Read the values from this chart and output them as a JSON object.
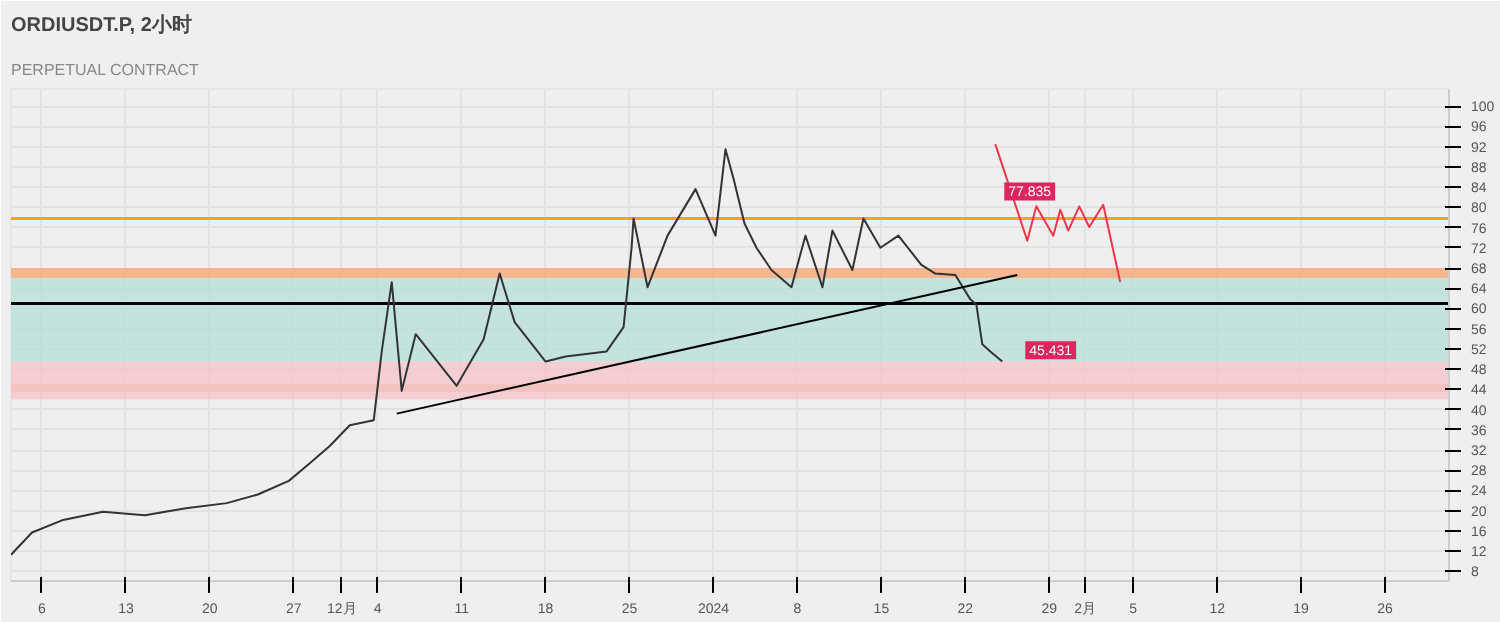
{
  "chart_data": {
    "type": "line",
    "title": "ORDIUSDT.P, 2小时",
    "subtitle": "PERPETUAL CONTRACT",
    "xlim": [
      "2023-11-03T10:00",
      "2024-03-02T08:00"
    ],
    "ylim": [
      6.1,
      103.4
    ],
    "xticks": [
      {
        "value": "2023-11-06",
        "label": "6"
      },
      {
        "value": "2023-11-13",
        "label": "13"
      },
      {
        "value": "2023-11-20",
        "label": "20"
      },
      {
        "value": "2023-11-27",
        "label": "27"
      },
      {
        "value": "2023-12-01",
        "label": "12月"
      },
      {
        "value": "2023-12-04",
        "label": "4"
      },
      {
        "value": "2023-12-11",
        "label": "11"
      },
      {
        "value": "2023-12-18",
        "label": "18"
      },
      {
        "value": "2023-12-25",
        "label": "25"
      },
      {
        "value": "2024-01-01",
        "label": "2024"
      },
      {
        "value": "2024-01-08",
        "label": "8"
      },
      {
        "value": "2024-01-15",
        "label": "15"
      },
      {
        "value": "2024-01-22",
        "label": "22"
      },
      {
        "value": "2024-01-29",
        "label": "29"
      },
      {
        "value": "2024-02-01",
        "label": "2月"
      },
      {
        "value": "2024-02-05",
        "label": "5"
      },
      {
        "value": "2024-02-12",
        "label": "12"
      },
      {
        "value": "2024-02-19",
        "label": "19"
      },
      {
        "value": "2024-02-26",
        "label": "26"
      }
    ],
    "yticks": [
      8,
      12,
      16,
      20,
      24,
      28,
      32,
      36,
      40,
      44,
      48,
      52,
      56,
      60,
      64,
      68,
      72,
      76,
      80,
      84,
      88,
      92,
      96,
      100
    ],
    "grid": true,
    "marker": "none",
    "line_style": "solid",
    "series": [
      {
        "color": "#333333",
        "x": [
          "2023-11-03T10:00",
          "2023-11-05T04:00",
          "2023-11-07T16:00",
          "2023-11-11T02:00",
          "2023-11-14T14:00",
          "2023-11-18T00:00",
          "2023-11-21T10:00",
          "2023-11-24T00:00",
          "2023-11-26T14:00",
          "2023-11-28T08:00",
          "2023-11-30T00:00",
          "2023-12-01T16:00",
          "2023-12-03T16:00",
          "2023-12-04T08:00",
          "2023-12-05T04:00",
          "2023-12-06T00:00",
          "2023-12-07T04:00",
          "2023-12-10T14:00",
          "2023-12-12T20:00",
          "2023-12-14T04:00",
          "2023-12-15T10:00",
          "2023-12-18T00:00",
          "2023-12-19T16:00",
          "2023-12-23T02:00",
          "2023-12-24T12:00",
          "2023-12-25T04:00",
          "2023-12-25T08:00",
          "2023-12-26T12:00",
          "2023-12-28T04:00",
          "2023-12-30T12:00",
          "2024-01-01T04:00",
          "2024-01-02T00:00",
          "2024-01-02T16:00",
          "2024-01-03T14:00",
          "2024-01-04T14:00",
          "2024-01-05T20:00",
          "2024-01-07T12:00",
          "2024-01-08T16:00",
          "2024-01-10T02:00",
          "2024-01-10T22:00",
          "2024-01-12T14:00",
          "2024-01-13T12:00",
          "2024-01-14T22:00",
          "2024-01-16T10:00",
          "2024-01-18T08:00",
          "2024-01-19T12:00",
          "2024-01-21T04:00",
          "2024-01-22T10:00",
          "2024-01-22T22:00",
          "2024-01-23T10:00",
          "2024-01-24T02:00",
          "2024-01-25T02:00"
        ],
        "values": [
          11.3,
          15.7,
          18.1,
          19.8,
          19.1,
          20.5,
          21.5,
          23.2,
          25.9,
          29.4,
          32.8,
          36.9,
          37.9,
          51.5,
          65.2,
          43.7,
          54.9,
          44.7,
          53.9,
          66.9,
          57.3,
          49.5,
          50.5,
          51.5,
          56.3,
          72.0,
          77.8,
          64.2,
          74.4,
          83.6,
          74.4,
          91.5,
          85.7,
          76.8,
          72.0,
          67.6,
          64.2,
          74.4,
          64.2,
          75.4,
          67.6,
          77.8,
          72.0,
          74.4,
          68.6,
          66.9,
          66.6,
          61.8,
          60.8,
          52.9,
          51.5,
          49.5
        ]
      },
      {
        "color": "#000000",
        "x": [
          "2023-12-05T14:00",
          "2024-01-26T08:00"
        ],
        "values": [
          39.2,
          66.6
        ]
      },
      {
        "color": "#f23645",
        "x": [
          "2024-01-24T12:00",
          "2024-01-27T04:00",
          "2024-01-27T22:00",
          "2024-01-29T08:00",
          "2024-01-29T22:00",
          "2024-01-30T14:00",
          "2024-01-31T12:00",
          "2024-02-01T08:00",
          "2024-02-02T12:00",
          "2024-02-03T22:00"
        ],
        "values": [
          92.5,
          73.4,
          80.2,
          74.4,
          79.5,
          75.4,
          80.2,
          76.1,
          80.5,
          65.2
        ]
      }
    ],
    "ref_lines": [
      {
        "axis": "y",
        "value": 77.8,
        "color": "#f7a21b"
      },
      {
        "axis": "y",
        "value": 61.0,
        "color": "#000000"
      }
    ],
    "bands": [
      {
        "axis": "y",
        "from": 66.0,
        "to": 68.0,
        "color": "#f5a97a"
      },
      {
        "axis": "y",
        "from": 43.5,
        "to": 45.0,
        "color": "#f5a97a"
      },
      {
        "axis": "y",
        "from": 49.5,
        "to": 66.0,
        "color": "#b9e0d8"
      },
      {
        "axis": "y",
        "from": 42.0,
        "to": 49.5,
        "color": "#f5c6cb"
      }
    ],
    "annotations": [
      {
        "text": "77.835",
        "x": "2024-01-24T14:00",
        "y": 77.8
      },
      {
        "text": "45.431",
        "x": "2024-01-26T08:00",
        "y": 46.4
      }
    ]
  }
}
